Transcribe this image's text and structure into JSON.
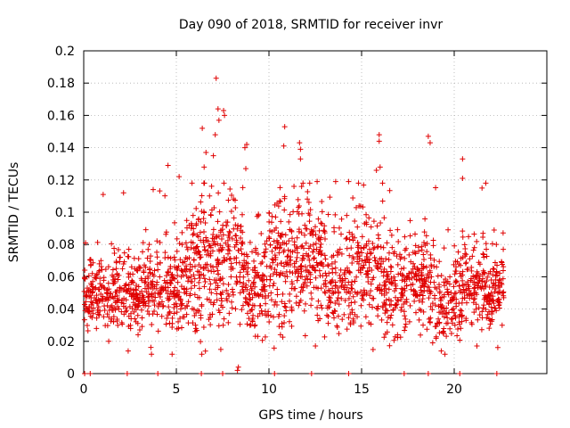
{
  "chart_data": {
    "type": "scatter",
    "title": "Day 090 of 2018, SRMTID for receiver invr",
    "xlabel": "GPS time / hours",
    "ylabel": "SRMTID / TECUs",
    "xlim": [
      0,
      25
    ],
    "ylim": [
      0,
      0.2
    ],
    "x_ticks": [
      0,
      5,
      10,
      15,
      20
    ],
    "y_ticks": [
      0,
      0.02,
      0.04,
      0.06,
      0.08,
      0.1,
      0.12,
      0.14,
      0.16,
      0.18,
      0.2
    ],
    "x_tick_labels": [
      "0",
      "5",
      "10",
      "15",
      "20"
    ],
    "y_tick_labels": [
      "0",
      "0.02",
      "0.04",
      "0.06",
      "0.08",
      "0.1",
      "0.12",
      "0.14",
      "0.16",
      "0.18",
      "0.2"
    ],
    "grid": true,
    "legend": "none",
    "marker": "plus",
    "color": "#e00000",
    "zero_points_x": [
      0.05,
      0.35,
      2.35,
      4.0,
      6.35,
      7.5,
      10.3,
      12.3,
      14.3,
      17.3,
      18.6,
      20.3,
      22.3
    ],
    "bands": [
      {
        "x0": 0.0,
        "x1": 1.6,
        "center": 0.049,
        "spread": 0.011,
        "n": 140
      },
      {
        "x0": 1.6,
        "x1": 2.8,
        "center": 0.053,
        "spread": 0.013,
        "n": 110
      },
      {
        "x0": 2.8,
        "x1": 4.2,
        "center": 0.052,
        "spread": 0.014,
        "n": 130
      },
      {
        "x0": 4.2,
        "x1": 5.8,
        "center": 0.056,
        "spread": 0.016,
        "n": 150
      },
      {
        "x0": 5.8,
        "x1": 7.2,
        "center": 0.066,
        "spread": 0.021,
        "n": 150
      },
      {
        "x0": 7.2,
        "x1": 8.6,
        "center": 0.068,
        "spread": 0.021,
        "n": 140
      },
      {
        "x0": 8.6,
        "x1": 10.0,
        "center": 0.055,
        "spread": 0.016,
        "n": 130
      },
      {
        "x0": 10.0,
        "x1": 11.5,
        "center": 0.066,
        "spread": 0.019,
        "n": 150
      },
      {
        "x0": 11.5,
        "x1": 13.0,
        "center": 0.072,
        "spread": 0.02,
        "n": 150
      },
      {
        "x0": 13.0,
        "x1": 14.5,
        "center": 0.055,
        "spread": 0.016,
        "n": 130
      },
      {
        "x0": 14.5,
        "x1": 16.2,
        "center": 0.064,
        "spread": 0.018,
        "n": 150
      },
      {
        "x0": 16.2,
        "x1": 17.6,
        "center": 0.052,
        "spread": 0.014,
        "n": 130
      },
      {
        "x0": 17.6,
        "x1": 19.0,
        "center": 0.06,
        "spread": 0.017,
        "n": 130
      },
      {
        "x0": 19.0,
        "x1": 20.4,
        "center": 0.046,
        "spread": 0.014,
        "n": 120
      },
      {
        "x0": 20.4,
        "x1": 21.8,
        "center": 0.058,
        "spread": 0.016,
        "n": 130
      },
      {
        "x0": 21.8,
        "x1": 22.7,
        "center": 0.052,
        "spread": 0.012,
        "n": 90
      }
    ],
    "outliers": [
      {
        "x": 7.15,
        "y": 0.183
      },
      {
        "x": 7.25,
        "y": 0.164
      },
      {
        "x": 7.55,
        "y": 0.163
      },
      {
        "x": 7.6,
        "y": 0.16
      },
      {
        "x": 7.1,
        "y": 0.148
      },
      {
        "x": 6.4,
        "y": 0.152
      },
      {
        "x": 7.3,
        "y": 0.157
      },
      {
        "x": 10.85,
        "y": 0.153
      },
      {
        "x": 11.65,
        "y": 0.143
      },
      {
        "x": 11.7,
        "y": 0.139
      },
      {
        "x": 10.8,
        "y": 0.141
      },
      {
        "x": 15.95,
        "y": 0.148
      },
      {
        "x": 15.95,
        "y": 0.144
      },
      {
        "x": 18.6,
        "y": 0.147
      },
      {
        "x": 18.7,
        "y": 0.143
      },
      {
        "x": 20.45,
        "y": 0.133
      },
      {
        "x": 20.45,
        "y": 0.121
      },
      {
        "x": 8.7,
        "y": 0.14
      },
      {
        "x": 8.8,
        "y": 0.142
      },
      {
        "x": 4.55,
        "y": 0.129
      },
      {
        "x": 16.0,
        "y": 0.128
      },
      {
        "x": 6.6,
        "y": 0.137
      },
      {
        "x": 6.5,
        "y": 0.128
      },
      {
        "x": 7.0,
        "y": 0.135
      },
      {
        "x": 11.7,
        "y": 0.133
      },
      {
        "x": 15.8,
        "y": 0.126
      },
      {
        "x": 21.5,
        "y": 0.115
      },
      {
        "x": 14.3,
        "y": 0.119
      },
      {
        "x": 12.6,
        "y": 0.119
      },
      {
        "x": 3.75,
        "y": 0.114
      },
      {
        "x": 2.15,
        "y": 0.112
      },
      {
        "x": 1.05,
        "y": 0.111
      },
      {
        "x": 8.75,
        "y": 0.127
      },
      {
        "x": 13.6,
        "y": 0.119
      },
      {
        "x": 11.35,
        "y": 0.116
      },
      {
        "x": 5.15,
        "y": 0.122
      },
      {
        "x": 8.35,
        "y": 0.004
      },
      {
        "x": 8.3,
        "y": 0.002
      },
      {
        "x": 19.5,
        "y": 0.012
      },
      {
        "x": 19.3,
        "y": 0.014
      },
      {
        "x": 2.4,
        "y": 0.014
      },
      {
        "x": 7.4,
        "y": 0.015
      },
      {
        "x": 1.35,
        "y": 0.02
      },
      {
        "x": 0.1,
        "y": 0.081
      },
      {
        "x": 0.05,
        "y": 0.059
      }
    ]
  }
}
